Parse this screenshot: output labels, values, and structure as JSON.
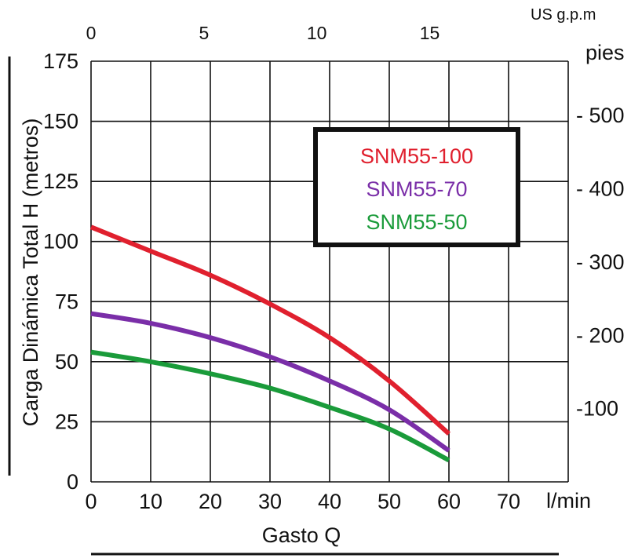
{
  "chart_data": {
    "type": "line",
    "ylabel": "Carga Dinámica Total H (metros)",
    "xlabel": "Gasto Q",
    "x_unit": "l/min",
    "x_top_unit": "US g.p.m",
    "y_right_unit": "pies",
    "xlim": [
      0,
      80
    ],
    "ylim": [
      0,
      175
    ],
    "x_ticks": [
      0,
      10,
      20,
      30,
      40,
      50,
      60,
      70
    ],
    "x_tick_labels": [
      "0",
      "10",
      "20",
      "30",
      "40",
      "50",
      "60",
      "70"
    ],
    "y_ticks": [
      0,
      25,
      50,
      75,
      100,
      125,
      150,
      175
    ],
    "y_tick_labels": [
      "0",
      "25",
      "50",
      "75",
      "100",
      "125",
      "150",
      "175"
    ],
    "top_ticks": [
      0,
      5,
      10,
      15
    ],
    "top_tick_labels": [
      "0",
      "5",
      "10",
      "15"
    ],
    "right_ticks": [
      100,
      200,
      300,
      400,
      500
    ],
    "right_tick_labels": [
      "-100",
      "- 200",
      "- 300",
      "- 400",
      "- 500"
    ],
    "grid": true,
    "legend_position": "top-right",
    "series": [
      {
        "name": "SNM55-100",
        "color": "#e0202e",
        "x": [
          0,
          10,
          20,
          30,
          40,
          50,
          60
        ],
        "y": [
          106,
          96,
          86,
          74,
          60,
          42,
          20
        ]
      },
      {
        "name": "SNM55-70",
        "color": "#7a2ea8",
        "x": [
          0,
          10,
          20,
          30,
          40,
          50,
          60
        ],
        "y": [
          70,
          66,
          60,
          52,
          42,
          30,
          13
        ]
      },
      {
        "name": "SNM55-50",
        "color": "#1a9b3a",
        "x": [
          0,
          10,
          20,
          30,
          40,
          50,
          60
        ],
        "y": [
          54,
          50,
          45,
          39,
          31,
          22,
          9
        ]
      }
    ]
  }
}
